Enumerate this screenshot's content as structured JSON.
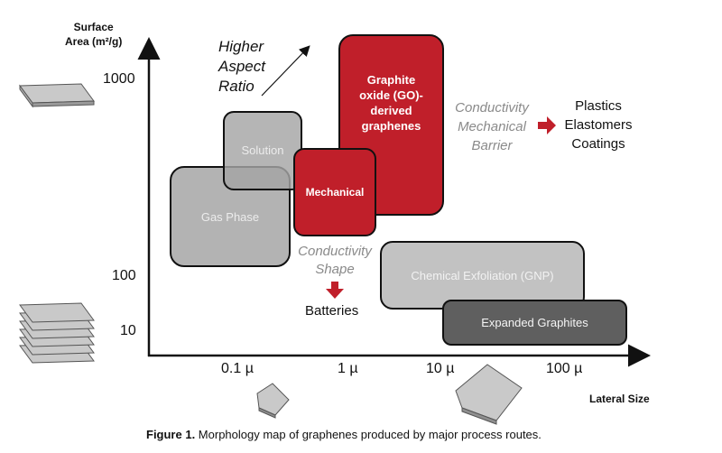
{
  "axes": {
    "y_label_line1": "Surface",
    "y_label_line2": "Area (m²/g)",
    "x_label": "Lateral Size",
    "y_ticks": [
      "1000",
      "100",
      "10"
    ],
    "x_ticks": [
      "0.1 µ",
      "1 µ",
      "10 µ",
      "100 µ"
    ]
  },
  "annotations": {
    "higher_aspect": [
      "Higher",
      "Aspect",
      "Ratio"
    ],
    "conductivity_barrier": [
      "Conductivity",
      "Mechanical",
      "Barrier"
    ],
    "applications_right": [
      "Plastics",
      "Elastomers",
      "Coatings"
    ],
    "conductivity_shape": [
      "Conductivity",
      "Shape"
    ],
    "batteries": "Batteries"
  },
  "regions": {
    "go": [
      "Graphite",
      "oxide (GO)-",
      "derived",
      "graphenes"
    ],
    "solution": "Solution",
    "gas_phase": "Gas Phase",
    "mechanical": "Mechanical",
    "chemical_exfoliation": "Chemical Exfoliation (GNP)",
    "expanded_graphites": "Expanded Graphites"
  },
  "caption": {
    "label": "Figure 1.",
    "text": " Morphology map of graphenes produced by major process routes."
  },
  "colors": {
    "red": "#c01f2a",
    "grey": "#b3b3b3",
    "dark": "#5f5f5f"
  }
}
